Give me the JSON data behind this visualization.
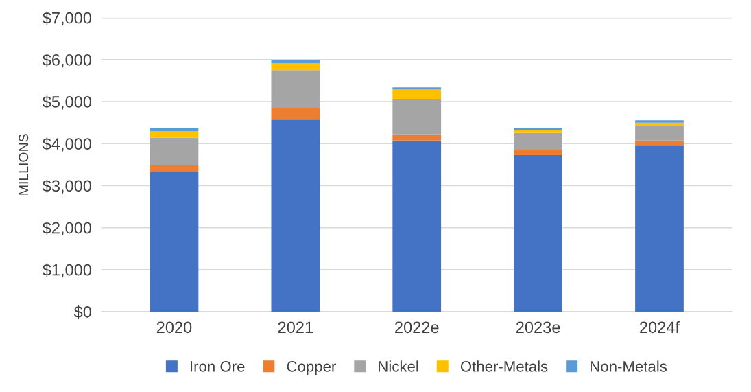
{
  "chart_data": {
    "type": "bar",
    "stacked": true,
    "ylabel": "MILLIONS",
    "categories": [
      "2020",
      "2021",
      "2022e",
      "2023e",
      "2024f"
    ],
    "series": [
      {
        "name": "Iron Ore",
        "color": "#4472c4",
        "values": [
          3320,
          4570,
          4075,
          3725,
          3965
        ]
      },
      {
        "name": "Copper",
        "color": "#ed7d31",
        "values": [
          165,
          280,
          145,
          120,
          110
        ]
      },
      {
        "name": "Nickel",
        "color": "#a5a5a5",
        "values": [
          655,
          900,
          845,
          410,
          350
        ]
      },
      {
        "name": "Other-Metals",
        "color": "#ffc000",
        "values": [
          155,
          165,
          220,
          70,
          75
        ]
      },
      {
        "name": "Non-Metals",
        "color": "#5b9bd5",
        "values": [
          75,
          70,
          55,
          55,
          55
        ]
      }
    ],
    "ylim": [
      0,
      7000
    ],
    "yticks": [
      {
        "value": 0,
        "label": "$0"
      },
      {
        "value": 1000,
        "label": "$1,000"
      },
      {
        "value": 2000,
        "label": "$2,000"
      },
      {
        "value": 3000,
        "label": "$3,000"
      },
      {
        "value": 4000,
        "label": "$4,000"
      },
      {
        "value": 5000,
        "label": "$5,000"
      },
      {
        "value": 6000,
        "label": "$6,000"
      },
      {
        "value": 7000,
        "label": "$7,000"
      }
    ],
    "grid": "y",
    "legend": "bottom"
  }
}
